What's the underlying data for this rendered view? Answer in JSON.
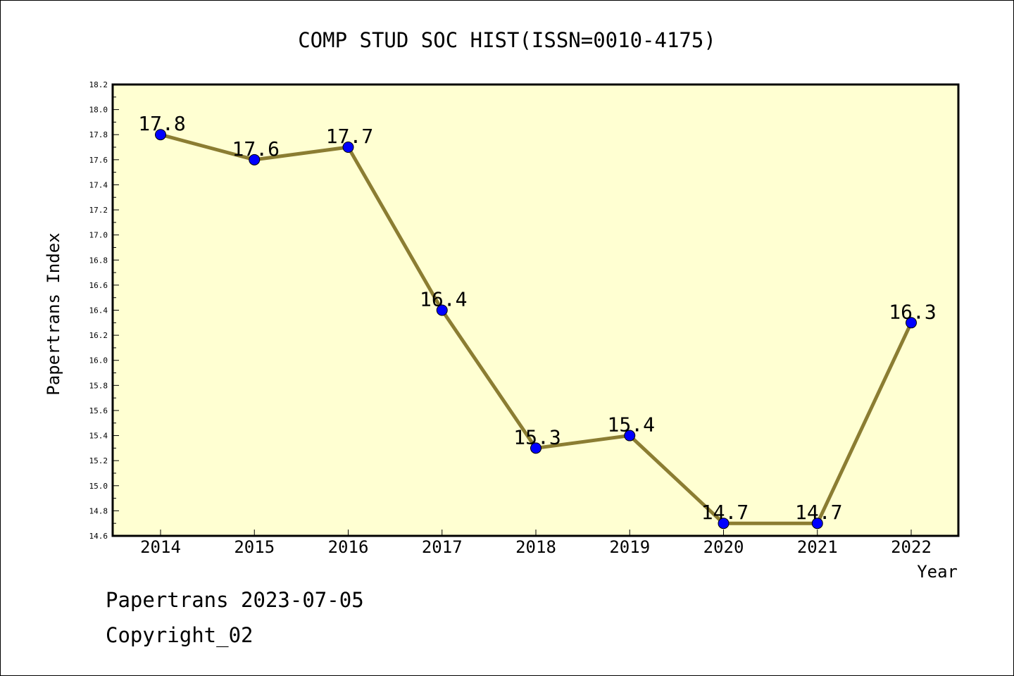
{
  "chart_data": {
    "type": "line",
    "title": "COMP STUD SOC HIST(ISSN=0010-4175)",
    "xlabel": "Year",
    "ylabel": "Papertrans Index",
    "x": [
      "2014",
      "2015",
      "2016",
      "2017",
      "2018",
      "2019",
      "2020",
      "2021",
      "2022"
    ],
    "series": [
      {
        "values": [
          17.8,
          17.6,
          17.7,
          16.4,
          15.3,
          15.4,
          14.7,
          14.7,
          16.3
        ]
      }
    ],
    "data_labels": [
      "17.8",
      "17.6",
      "17.7",
      "16.4",
      "15.3",
      "15.4",
      "14.7",
      "14.7",
      "16.3"
    ],
    "ylim": [
      14.6,
      18.2
    ],
    "yticks": [
      "14.6",
      "14.8",
      "15.0",
      "15.2",
      "15.4",
      "15.6",
      "15.8",
      "16.0",
      "16.2",
      "16.4",
      "16.6",
      "16.8",
      "17.0",
      "17.2",
      "17.4",
      "17.6",
      "17.8",
      "18.0",
      "18.2"
    ],
    "grid": false,
    "legend": "none",
    "colors": {
      "plot_background": "#ffffd2",
      "line": "#8b7d32",
      "marker": "#0000ff"
    }
  },
  "footer": {
    "date_line": "Papertrans 2023-07-05",
    "copyright": "Copyright_02"
  }
}
